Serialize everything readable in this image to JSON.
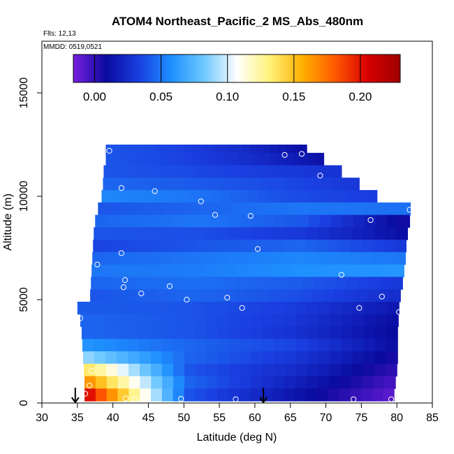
{
  "chart_data": {
    "type": "heatmap",
    "title": "ATOM4 Northeast_Pacific_2 MS_Abs_480nm",
    "flights_label": "Flts: 12,13",
    "date_label": "MMDD: 0519,0521",
    "xlabel": "Latitude (deg N)",
    "ylabel": "Altitude (m)",
    "xlim": [
      30,
      85
    ],
    "ylim": [
      0,
      17500
    ],
    "xticks": [
      30,
      35,
      40,
      45,
      50,
      55,
      60,
      65,
      70,
      75,
      80,
      85
    ],
    "yticks": [
      0,
      5000,
      10000,
      15000
    ],
    "grid": false,
    "colorbar": {
      "placement": "top",
      "range": [
        -0.016,
        0.23
      ],
      "ticks": [
        0.0,
        0.05,
        0.1,
        0.15,
        0.2
      ],
      "tick_labels": [
        "0.00",
        "0.05",
        "0.10",
        "0.15",
        "0.20"
      ],
      "colors": [
        "#7a1fe0",
        "#0a0a9e",
        "#1a3ee0",
        "#1e90ff",
        "#6ec8ff",
        "#ffffff",
        "#fff27a",
        "#ffb000",
        "#ff5a00",
        "#d80000",
        "#9e0000"
      ]
    },
    "arrows_lat": [
      34.7,
      61.2
    ],
    "profile_rows": [
      {
        "alt": 12200,
        "lat_min": 39.0,
        "lat_max": 67.3,
        "values": [
          0.04,
          0.035,
          0.025,
          0.01
        ]
      },
      {
        "alt": 11800,
        "lat_min": 39.0,
        "lat_max": 69.7,
        "values": [
          0.04,
          0.035,
          0.025,
          0.012
        ]
      },
      {
        "alt": 11200,
        "lat_min": 38.7,
        "lat_max": 72.2,
        "values": [
          0.04,
          0.037,
          0.032,
          0.028
        ]
      },
      {
        "alt": 10600,
        "lat_min": 38.6,
        "lat_max": 74.7,
        "values": [
          0.045,
          0.042,
          0.037,
          0.03
        ]
      },
      {
        "alt": 10000,
        "lat_min": 38.4,
        "lat_max": 77.2,
        "values": [
          0.055,
          0.05,
          0.038,
          0.032
        ]
      },
      {
        "alt": 9400,
        "lat_min": 37.9,
        "lat_max": 81.9,
        "values": [
          0.04,
          0.045,
          0.05,
          0.048
        ]
      },
      {
        "alt": 8800,
        "lat_min": 37.5,
        "lat_max": 81.8,
        "values": [
          0.045,
          0.05,
          0.04,
          0.005
        ]
      },
      {
        "alt": 8200,
        "lat_min": 37.3,
        "lat_max": 81.5,
        "values": [
          0.04,
          0.038,
          0.03,
          0.01
        ]
      },
      {
        "alt": 7600,
        "lat_min": 37.2,
        "lat_max": 81.3,
        "values": [
          0.035,
          0.04,
          0.045,
          0.03
        ]
      },
      {
        "alt": 7000,
        "lat_min": 37.1,
        "lat_max": 81.2,
        "values": [
          0.045,
          0.05,
          0.055,
          0.05
        ]
      },
      {
        "alt": 6400,
        "lat_min": 37.0,
        "lat_max": 81.0,
        "values": [
          0.05,
          0.052,
          0.058,
          0.06
        ]
      },
      {
        "alt": 5800,
        "lat_min": 36.9,
        "lat_max": 80.8,
        "values": [
          0.045,
          0.048,
          0.042,
          0.03
        ]
      },
      {
        "alt": 5200,
        "lat_min": 36.8,
        "lat_max": 80.5,
        "values": [
          0.04,
          0.045,
          0.038,
          0.025
        ]
      },
      {
        "alt": 4600,
        "lat_min": 35.0,
        "lat_max": 80.3,
        "values": [
          0.042,
          0.04,
          0.032,
          0.015
        ]
      },
      {
        "alt": 4000,
        "lat_min": 35.4,
        "lat_max": 80.2,
        "values": [
          0.045,
          0.04,
          0.03,
          0.01
        ]
      },
      {
        "alt": 3400,
        "lat_min": 35.6,
        "lat_max": 80.1,
        "values": [
          0.045,
          0.04,
          0.028,
          0.008
        ]
      },
      {
        "alt": 2800,
        "lat_min": 35.7,
        "lat_max": 80.1,
        "values": [
          0.06,
          0.045,
          0.035,
          0.01
        ]
      },
      {
        "alt": 2200,
        "lat_min": 35.8,
        "lat_max": 80.1,
        "values": [
          0.09,
          0.045,
          0.03,
          0.005
        ]
      },
      {
        "alt": 1600,
        "lat_min": 35.9,
        "lat_max": 80.0,
        "values": [
          0.14,
          0.04,
          0.025,
          0.0
        ]
      },
      {
        "alt": 1000,
        "lat_min": 36.0,
        "lat_max": 79.8,
        "values": [
          0.17,
          0.045,
          0.02,
          -0.005
        ]
      },
      {
        "alt": 400,
        "lat_min": 36.0,
        "lat_max": 79.6,
        "values": [
          0.21,
          0.04,
          0.015,
          -0.01
        ]
      }
    ],
    "sample_points": [
      {
        "lat": 39.5,
        "alt": 12200
      },
      {
        "lat": 64.2,
        "alt": 12000
      },
      {
        "lat": 66.6,
        "alt": 12050
      },
      {
        "lat": 69.2,
        "alt": 11000
      },
      {
        "lat": 41.2,
        "alt": 10400
      },
      {
        "lat": 45.9,
        "alt": 10250
      },
      {
        "lat": 52.4,
        "alt": 9750
      },
      {
        "lat": 54.4,
        "alt": 9100
      },
      {
        "lat": 59.4,
        "alt": 9050
      },
      {
        "lat": 76.3,
        "alt": 8850
      },
      {
        "lat": 81.8,
        "alt": 9350
      },
      {
        "lat": 41.2,
        "alt": 7250
      },
      {
        "lat": 60.4,
        "alt": 7450
      },
      {
        "lat": 37.8,
        "alt": 6700
      },
      {
        "lat": 72.2,
        "alt": 6200
      },
      {
        "lat": 41.7,
        "alt": 5950
      },
      {
        "lat": 41.5,
        "alt": 5600
      },
      {
        "lat": 48.0,
        "alt": 5650
      },
      {
        "lat": 44.0,
        "alt": 5300
      },
      {
        "lat": 50.4,
        "alt": 5000
      },
      {
        "lat": 56.1,
        "alt": 5100
      },
      {
        "lat": 58.2,
        "alt": 4600
      },
      {
        "lat": 74.7,
        "alt": 4600
      },
      {
        "lat": 77.9,
        "alt": 5150
      },
      {
        "lat": 80.3,
        "alt": 4400
      },
      {
        "lat": 35.4,
        "alt": 4100
      },
      {
        "lat": 37.0,
        "alt": 1550
      },
      {
        "lat": 36.7,
        "alt": 850
      },
      {
        "lat": 36.1,
        "alt": 450
      },
      {
        "lat": 41.8,
        "alt": 220
      },
      {
        "lat": 43.1,
        "alt": 180
      },
      {
        "lat": 49.6,
        "alt": 200
      },
      {
        "lat": 57.3,
        "alt": 180
      },
      {
        "lat": 73.9,
        "alt": 180
      },
      {
        "lat": 79.2,
        "alt": 180
      }
    ]
  }
}
